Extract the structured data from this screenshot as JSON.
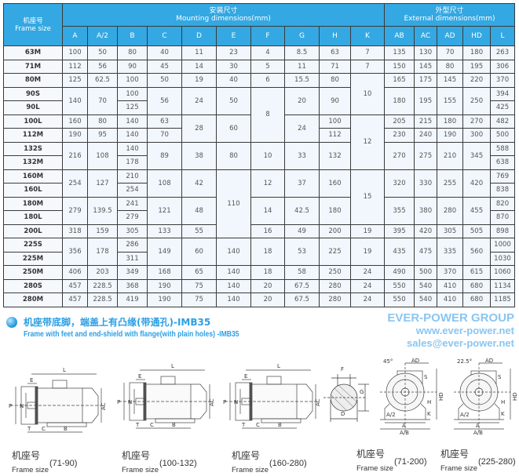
{
  "table": {
    "frame_header_cn": "机座号",
    "frame_header_en": "Frame size",
    "mounting_header_cn": "安装尺寸",
    "mounting_header_en": "Mounting dimensions(mm)",
    "external_header_cn": "外型尺寸",
    "external_header_en": "External dimensions(mm)",
    "frames": [
      "63M",
      "71M",
      "80M",
      "90S",
      "90L",
      "100L",
      "112M",
      "132S",
      "132M",
      "160M",
      "160L",
      "180M",
      "180L",
      "200L",
      "225S",
      "225M",
      "250M",
      "280S",
      "280M"
    ],
    "columns": [
      {
        "name": "A",
        "cells": [
          [
            "100",
            1
          ],
          [
            "112",
            1
          ],
          [
            "125",
            1
          ],
          [
            "140",
            2
          ],
          [
            "160",
            1
          ],
          [
            "190",
            1
          ],
          [
            "216",
            2
          ],
          [
            "254",
            2
          ],
          [
            "279",
            2
          ],
          [
            "318",
            1
          ],
          [
            "356",
            2
          ],
          [
            "406",
            1
          ],
          [
            "457",
            1
          ],
          [
            "457",
            1
          ]
        ]
      },
      {
        "name": "A/2",
        "cells": [
          [
            "50",
            1
          ],
          [
            "56",
            1
          ],
          [
            "62.5",
            1
          ],
          [
            "70",
            2
          ],
          [
            "80",
            1
          ],
          [
            "95",
            1
          ],
          [
            "108",
            2
          ],
          [
            "127",
            2
          ],
          [
            "139.5",
            2
          ],
          [
            "159",
            1
          ],
          [
            "178",
            2
          ],
          [
            "203",
            1
          ],
          [
            "228.5",
            1
          ],
          [
            "228.5",
            1
          ]
        ]
      },
      {
        "name": "B",
        "cells": [
          [
            "80",
            1
          ],
          [
            "90",
            1
          ],
          [
            "100",
            1
          ],
          [
            "100",
            1
          ],
          [
            "125",
            1
          ],
          [
            "140",
            1
          ],
          [
            "140",
            1
          ],
          [
            "140",
            1
          ],
          [
            "178",
            1
          ],
          [
            "210",
            1
          ],
          [
            "254",
            1
          ],
          [
            "241",
            1
          ],
          [
            "279",
            1
          ],
          [
            "305",
            1
          ],
          [
            "286",
            1
          ],
          [
            "311",
            1
          ],
          [
            "349",
            1
          ],
          [
            "368",
            1
          ],
          [
            "419",
            1
          ]
        ]
      },
      {
        "name": "C",
        "cells": [
          [
            "40",
            1
          ],
          [
            "45",
            1
          ],
          [
            "50",
            1
          ],
          [
            "56",
            2
          ],
          [
            "63",
            1
          ],
          [
            "70",
            1
          ],
          [
            "89",
            2
          ],
          [
            "108",
            2
          ],
          [
            "121",
            2
          ],
          [
            "133",
            1
          ],
          [
            "149",
            2
          ],
          [
            "168",
            1
          ],
          [
            "190",
            1
          ],
          [
            "190",
            1
          ]
        ]
      },
      {
        "name": "D",
        "cells": [
          [
            "11",
            1
          ],
          [
            "14",
            1
          ],
          [
            "19",
            1
          ],
          [
            "24",
            2
          ],
          [
            "28",
            2
          ],
          [
            "38",
            2
          ],
          [
            "42",
            2
          ],
          [
            "48",
            2
          ],
          [
            "55",
            1
          ],
          [
            "60",
            2
          ],
          [
            "65",
            1
          ],
          [
            "75",
            1
          ],
          [
            "75",
            1
          ]
        ]
      },
      {
        "name": "E",
        "cells": [
          [
            "23",
            1
          ],
          [
            "30",
            1
          ],
          [
            "40",
            1
          ],
          [
            "50",
            2
          ],
          [
            "60",
            2
          ],
          [
            "80",
            2
          ],
          [
            "110",
            5
          ],
          [
            "140",
            2
          ],
          [
            "140",
            1
          ],
          [
            "140",
            1
          ],
          [
            "140",
            1
          ]
        ]
      },
      {
        "name": "F",
        "cells": [
          [
            "4",
            1
          ],
          [
            "5",
            1
          ],
          [
            "6",
            1
          ],
          [
            "8",
            4
          ],
          [
            "10",
            2
          ],
          [
            "12",
            2
          ],
          [
            "14",
            2
          ],
          [
            "16",
            1
          ],
          [
            "18",
            2
          ],
          [
            "18",
            1
          ],
          [
            "20",
            1
          ],
          [
            "20",
            1
          ]
        ]
      },
      {
        "name": "G",
        "cells": [
          [
            "8.5",
            1
          ],
          [
            "11",
            1
          ],
          [
            "15.5",
            1
          ],
          [
            "20",
            2
          ],
          [
            "24",
            2
          ],
          [
            "33",
            2
          ],
          [
            "37",
            2
          ],
          [
            "42.5",
            2
          ],
          [
            "49",
            1
          ],
          [
            "53",
            2
          ],
          [
            "58",
            1
          ],
          [
            "67.5",
            1
          ],
          [
            "67.5",
            1
          ]
        ]
      },
      {
        "name": "H",
        "cells": [
          [
            "63",
            1
          ],
          [
            "71",
            1
          ],
          [
            "80",
            1
          ],
          [
            "90",
            2
          ],
          [
            "100",
            1
          ],
          [
            "112",
            1
          ],
          [
            "132",
            2
          ],
          [
            "160",
            2
          ],
          [
            "180",
            2
          ],
          [
            "200",
            1
          ],
          [
            "225",
            2
          ],
          [
            "250",
            1
          ],
          [
            "280",
            1
          ],
          [
            "280",
            1
          ]
        ]
      },
      {
        "name": "K",
        "cells": [
          [
            "7",
            1
          ],
          [
            "7",
            1
          ],
          [
            "10",
            3
          ],
          [
            "12",
            4
          ],
          [
            "15",
            4
          ],
          [
            "19",
            1
          ],
          [
            "19",
            2
          ],
          [
            "24",
            1
          ],
          [
            "24",
            1
          ],
          [
            "24",
            1
          ]
        ]
      },
      {
        "name": "AB",
        "cells": [
          [
            "135",
            1
          ],
          [
            "150",
            1
          ],
          [
            "165",
            1
          ],
          [
            "180",
            2
          ],
          [
            "205",
            1
          ],
          [
            "230",
            1
          ],
          [
            "270",
            2
          ],
          [
            "320",
            2
          ],
          [
            "355",
            2
          ],
          [
            "395",
            1
          ],
          [
            "435",
            2
          ],
          [
            "490",
            1
          ],
          [
            "550",
            1
          ],
          [
            "550",
            1
          ]
        ]
      },
      {
        "name": "AC",
        "cells": [
          [
            "130",
            1
          ],
          [
            "145",
            1
          ],
          [
            "175",
            1
          ],
          [
            "195",
            2
          ],
          [
            "215",
            1
          ],
          [
            "240",
            1
          ],
          [
            "275",
            2
          ],
          [
            "330",
            2
          ],
          [
            "380",
            2
          ],
          [
            "420",
            1
          ],
          [
            "475",
            2
          ],
          [
            "500",
            1
          ],
          [
            "540",
            1
          ],
          [
            "540",
            1
          ]
        ]
      },
      {
        "name": "AD",
        "cells": [
          [
            "70",
            1
          ],
          [
            "80",
            1
          ],
          [
            "145",
            1
          ],
          [
            "155",
            2
          ],
          [
            "180",
            1
          ],
          [
            "190",
            1
          ],
          [
            "210",
            2
          ],
          [
            "255",
            2
          ],
          [
            "280",
            2
          ],
          [
            "305",
            1
          ],
          [
            "335",
            2
          ],
          [
            "370",
            1
          ],
          [
            "410",
            1
          ],
          [
            "410",
            1
          ]
        ]
      },
      {
        "name": "HD",
        "cells": [
          [
            "180",
            1
          ],
          [
            "195",
            1
          ],
          [
            "220",
            1
          ],
          [
            "250",
            2
          ],
          [
            "270",
            1
          ],
          [
            "300",
            1
          ],
          [
            "345",
            2
          ],
          [
            "420",
            2
          ],
          [
            "455",
            2
          ],
          [
            "505",
            1
          ],
          [
            "560",
            2
          ],
          [
            "615",
            1
          ],
          [
            "680",
            1
          ],
          [
            "680",
            1
          ]
        ]
      },
      {
        "name": "L",
        "cells": [
          [
            "263",
            1
          ],
          [
            "306",
            1
          ],
          [
            "370",
            1
          ],
          [
            "394",
            1
          ],
          [
            "425",
            1
          ],
          [
            "482",
            1
          ],
          [
            "500",
            1
          ],
          [
            "588",
            1
          ],
          [
            "638",
            1
          ],
          [
            "769",
            1
          ],
          [
            "838",
            1
          ],
          [
            "820",
            1
          ],
          [
            "870",
            1
          ],
          [
            "898",
            1
          ],
          [
            "1000",
            1
          ],
          [
            "1030",
            1
          ],
          [
            "1060",
            1
          ],
          [
            "1134",
            1
          ],
          [
            "1185",
            1
          ]
        ]
      }
    ]
  },
  "watermark": {
    "line1": "EVER-POWER GROUP",
    "line2": "www.ever-power.net",
    "line3": "sales@ever-power.net"
  },
  "caption": {
    "cn": "机座带底脚，端盖上有凸缘(带通孔)-IMB35",
    "en": "Frame with feet and end-shield with flange(with plain holes) -IMB35"
  },
  "diagram_labels": {
    "L": "L",
    "P": "P",
    "N": "N",
    "AC": "AC",
    "T": "T",
    "C": "C",
    "B": "B",
    "E": "E",
    "F": "F",
    "G": "G",
    "D": "D",
    "AD": "AD",
    "HD": "HD",
    "H": "H",
    "K": "K",
    "A2": "A/2",
    "A": "A",
    "AB": "A/B",
    "S": "S",
    "angle1": "45°",
    "angle2": "22.5°"
  },
  "figures": [
    {
      "cn": "机座号",
      "en": "Frame size",
      "range": "(71-90)"
    },
    {
      "cn": "机座号",
      "en": "Frame size",
      "range": "(100-132)"
    },
    {
      "cn": "机座号",
      "en": "Frame size",
      "range": "(160-280)"
    },
    {
      "cn": "机座号",
      "en": "Frame size",
      "range": "(71-200)"
    },
    {
      "cn": "机座号",
      "en": "Frame size",
      "range": "(225-280)"
    }
  ],
  "colors": {
    "header": "#34a8e2",
    "caption": "#2c9fe3",
    "cell": "#f1f7fc",
    "grid": "#3a3a3a"
  }
}
